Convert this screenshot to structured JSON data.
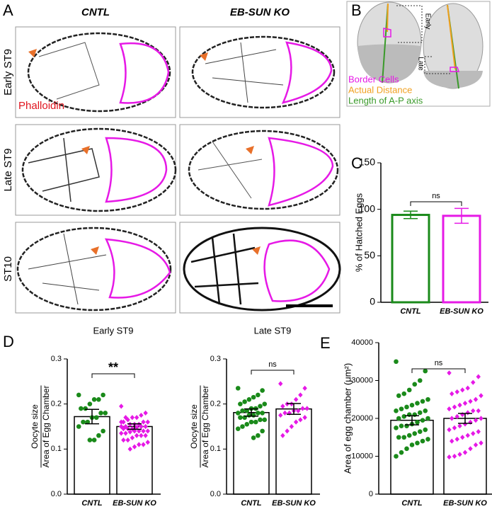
{
  "panel_labels": [
    "A",
    "B",
    "C",
    "D",
    "E"
  ],
  "panel_a": {
    "columns": [
      "CNTL",
      "EB-SUN KO"
    ],
    "rows": [
      "Early ST9",
      "Late ST9",
      "ST10"
    ],
    "stain": "Phalloidin"
  },
  "panel_b": {
    "labels": [
      "Early",
      "Late"
    ],
    "legend": [
      {
        "text": "Border Cells",
        "color": "#e619e6"
      },
      {
        "text": "Actual Distance",
        "color": "#f0a020"
      },
      {
        "text": "Length of A-P axis",
        "color": "#3a9a2a"
      }
    ]
  },
  "chart_data": [
    {
      "type": "bar",
      "ylabel": "% of Hatched Eggs",
      "categories": [
        "CNTL",
        "EB-SUN KO"
      ],
      "values": [
        94,
        93
      ],
      "errors": [
        4,
        8
      ],
      "colors": [
        "#1a8a1a",
        "#e619e6"
      ],
      "ylim": [
        0,
        150
      ],
      "yticks": [
        0,
        50,
        100,
        150
      ],
      "annotation": "ns"
    },
    {
      "type": "bar",
      "title": "Early ST9",
      "ylabel_numerator": "Oocyte size",
      "ylabel_denominator": "Area of Egg Chamber",
      "categories": [
        "CNTL",
        "EB-SUN KO"
      ],
      "values": [
        0.172,
        0.15
      ],
      "errors": [
        0.016,
        0.006
      ],
      "colors": [
        "#000000",
        "#000000"
      ],
      "point_colors": [
        "#1a8a1a",
        "#e619e6"
      ],
      "points": [
        [
          0.22,
          0.22,
          0.21,
          0.21,
          0.2,
          0.19,
          0.19,
          0.18,
          0.18,
          0.17,
          0.17,
          0.16,
          0.16,
          0.15,
          0.14,
          0.13,
          0.12,
          0.12
        ],
        [
          0.195,
          0.18,
          0.175,
          0.17,
          0.17,
          0.165,
          0.16,
          0.16,
          0.16,
          0.155,
          0.155,
          0.155,
          0.15,
          0.15,
          0.15,
          0.15,
          0.148,
          0.145,
          0.145,
          0.145,
          0.14,
          0.14,
          0.14,
          0.14,
          0.138,
          0.135,
          0.135,
          0.13,
          0.13,
          0.13,
          0.125,
          0.12,
          0.12,
          0.115,
          0.11,
          0.11,
          0.105,
          0.1,
          0.17,
          0.16
        ]
      ],
      "ylim": [
        0,
        0.3
      ],
      "yticks": [
        {
          "value": 0,
          "label": "0.0"
        },
        0.1,
        0.2,
        0.3
      ],
      "annotation": "**"
    },
    {
      "type": "bar",
      "title": "Late ST9",
      "ylabel_numerator": "Oocyte size",
      "ylabel_denominator": "Area of Egg Chamber",
      "categories": [
        "CNTL",
        "EB-SUN KO"
      ],
      "values": [
        0.181,
        0.189
      ],
      "errors": [
        0.008,
        0.012
      ],
      "colors": [
        "#000000",
        "#000000"
      ],
      "point_colors": [
        "#1a8a1a",
        "#e619e6"
      ],
      "points": [
        [
          0.235,
          0.23,
          0.22,
          0.215,
          0.21,
          0.205,
          0.2,
          0.2,
          0.195,
          0.19,
          0.19,
          0.185,
          0.185,
          0.18,
          0.18,
          0.18,
          0.175,
          0.175,
          0.17,
          0.17,
          0.165,
          0.165,
          0.16,
          0.16,
          0.155,
          0.15,
          0.145,
          0.14,
          0.13,
          0.125
        ],
        [
          0.245,
          0.235,
          0.22,
          0.21,
          0.2,
          0.2,
          0.195,
          0.19,
          0.19,
          0.185,
          0.185,
          0.18,
          0.18,
          0.175,
          0.17,
          0.165,
          0.16,
          0.15,
          0.14,
          0.13
        ]
      ],
      "ylim": [
        0,
        0.3
      ],
      "yticks": [
        {
          "value": 0,
          "label": "0.0"
        },
        0.1,
        0.2,
        0.3
      ],
      "annotation": "ns"
    },
    {
      "type": "bar",
      "ylabel": "Area of egg chamber (μm²)",
      "categories": [
        "CNTL",
        "EB-SUN KO"
      ],
      "values": [
        19500,
        20000
      ],
      "errors": [
        1200,
        1300
      ],
      "colors": [
        "#000000",
        "#000000"
      ],
      "point_colors": [
        "#1a8a1a",
        "#e619e6"
      ],
      "points": [
        [
          35000,
          32500,
          30000,
          29000,
          27500,
          26500,
          26000,
          25000,
          24500,
          24000,
          23500,
          23000,
          22500,
          22000,
          22000,
          21500,
          21000,
          21000,
          20500,
          20000,
          20000,
          19500,
          19000,
          18500,
          18000,
          18000,
          17500,
          17000,
          16500,
          16000,
          15500,
          15000,
          15000,
          14500,
          14000,
          13500,
          13000,
          12000,
          11000,
          10000
        ],
        [
          32000,
          31000,
          29500,
          28000,
          27500,
          27000,
          26500,
          26000,
          25000,
          24500,
          24000,
          23500,
          23000,
          22500,
          22000,
          22000,
          21500,
          21000,
          20500,
          20000,
          20000,
          19500,
          19000,
          18500,
          18000,
          17500,
          17000,
          16500,
          16000,
          15500,
          15000,
          14500,
          14000,
          13500,
          13000,
          12000,
          11000,
          10500,
          10000,
          9800
        ]
      ],
      "ylim": [
        0,
        40000
      ],
      "yticks": [
        0,
        10000,
        20000,
        30000,
        40000
      ],
      "annotation": "ns"
    }
  ]
}
